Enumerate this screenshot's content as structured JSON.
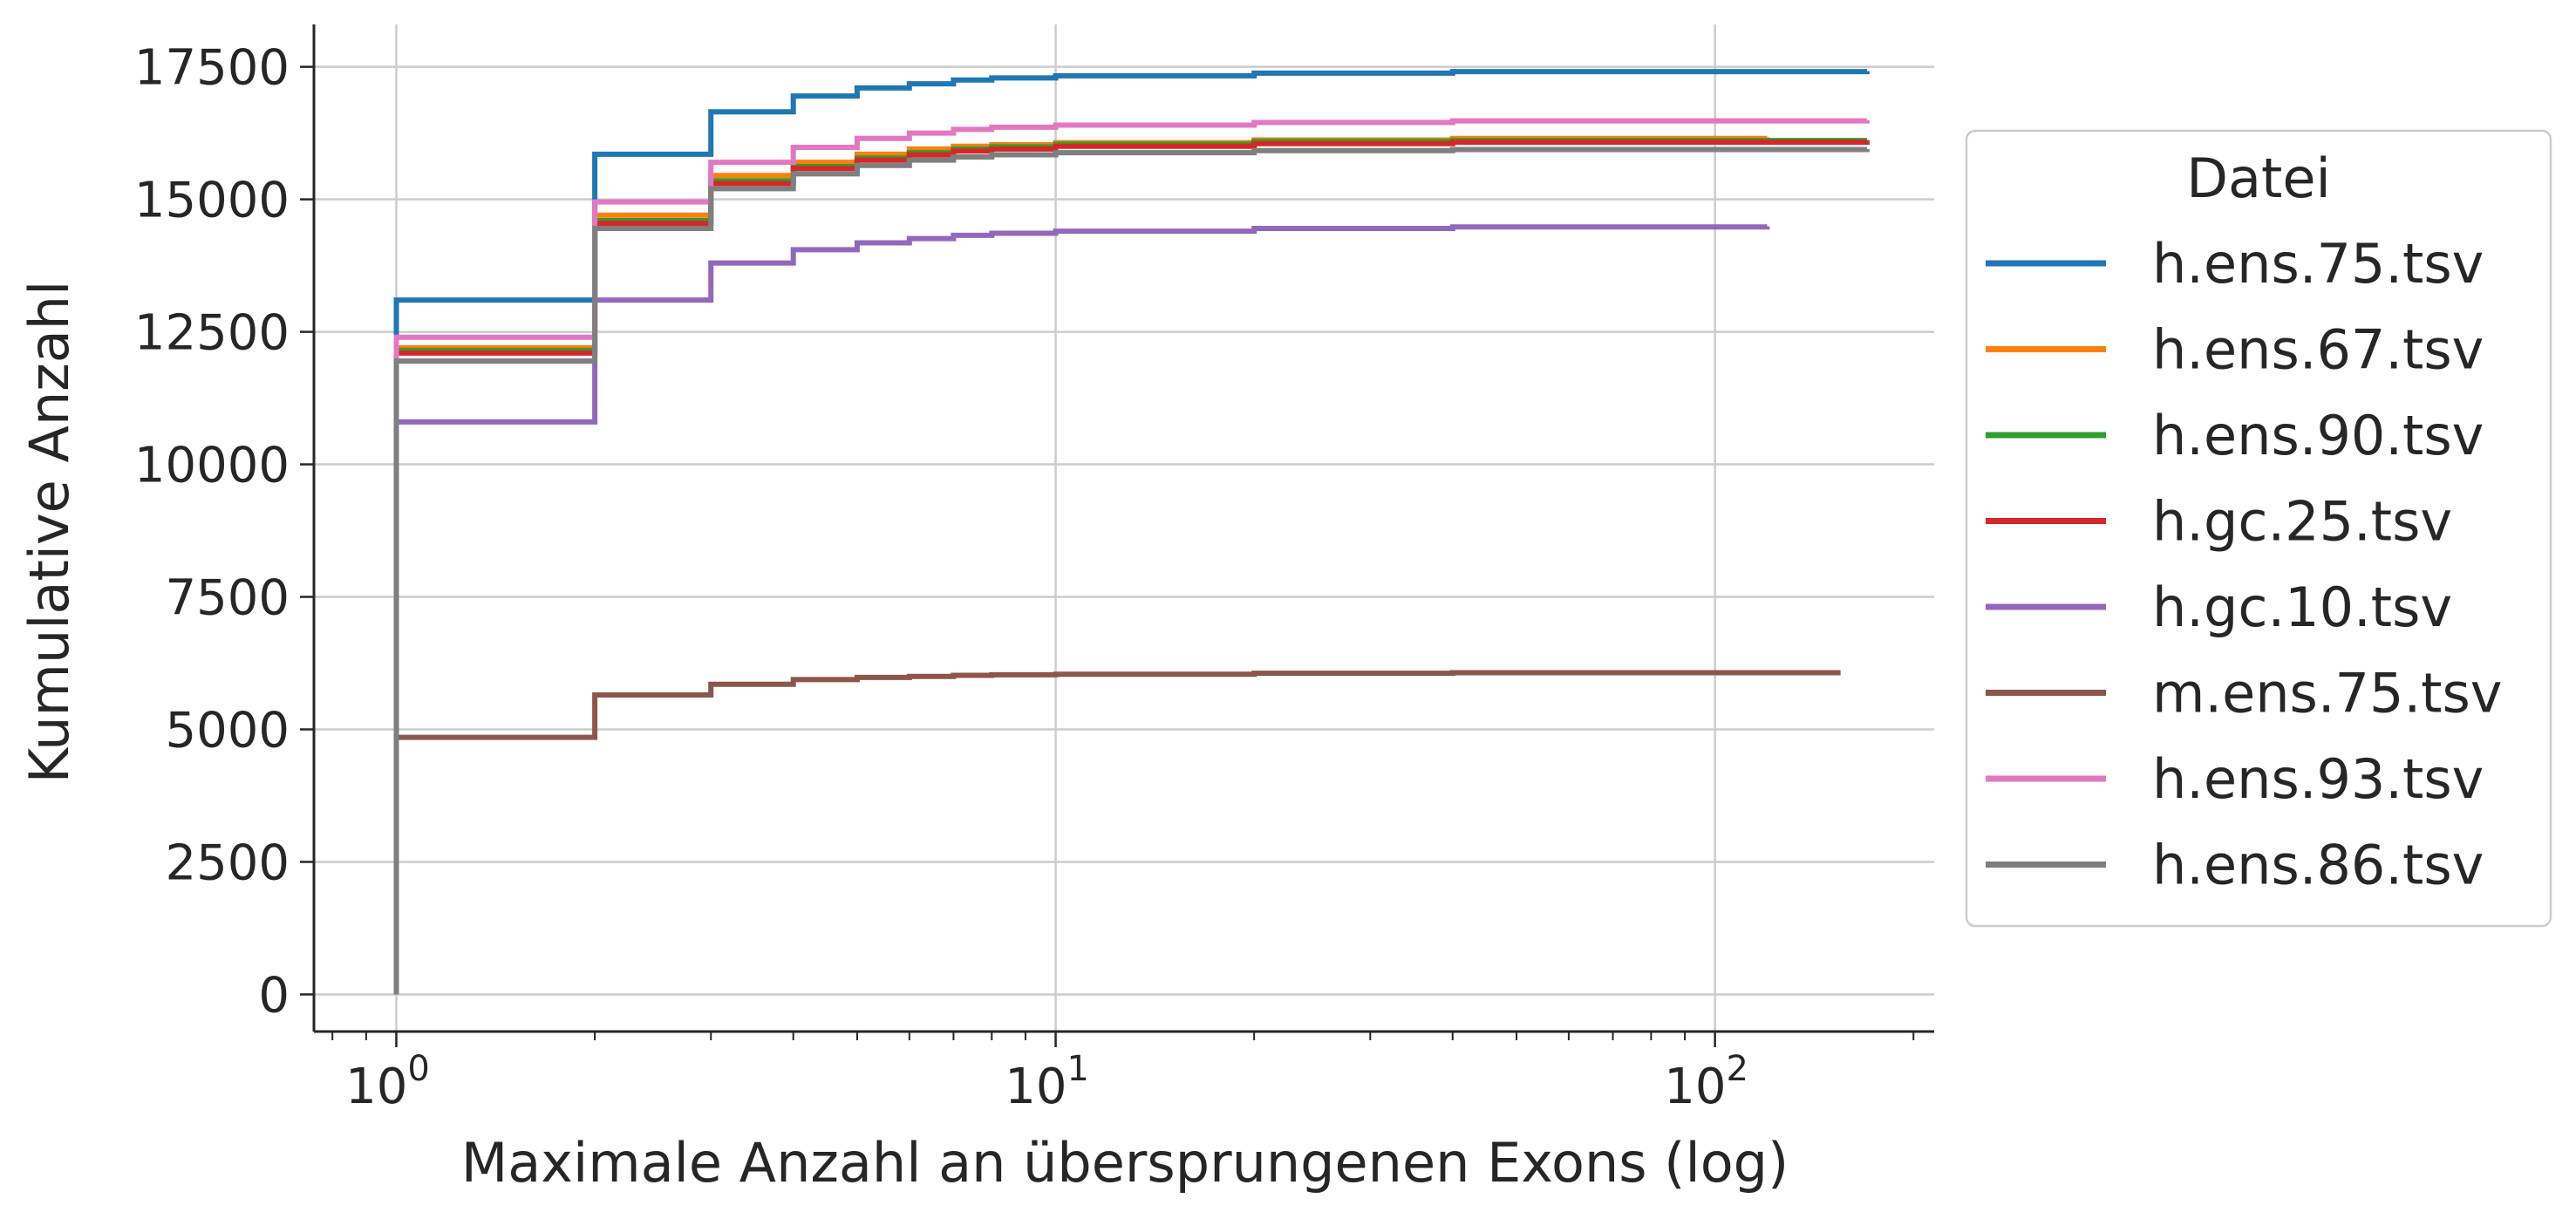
{
  "chart_data": {
    "type": "line",
    "drawstyle": "steps-post",
    "title": "",
    "xlabel": "Maximale Anzahl an übersprungenen Exons (log)",
    "ylabel": "Kumulative Anzahl",
    "xscale": "log",
    "xlim": [
      0.75,
      215
    ],
    "ylim": [
      -700,
      18300
    ],
    "xticks_major": [
      {
        "value": 1,
        "base": "10",
        "exp": "0"
      },
      {
        "value": 10,
        "base": "10",
        "exp": "1"
      },
      {
        "value": 100,
        "base": "10",
        "exp": "2"
      }
    ],
    "yticks": [
      {
        "value": 0,
        "label": "0"
      },
      {
        "value": 2500,
        "label": "2500"
      },
      {
        "value": 5000,
        "label": "5000"
      },
      {
        "value": 7500,
        "label": "7500"
      },
      {
        "value": 10000,
        "label": "10000"
      },
      {
        "value": 12500,
        "label": "12500"
      },
      {
        "value": 15000,
        "label": "15000"
      },
      {
        "value": 17500,
        "label": "17500"
      }
    ],
    "grid": true,
    "legend": {
      "title": "Datei",
      "placement": "outside-right"
    },
    "series": [
      {
        "name": "h.ens.75.tsv",
        "color": "#1f77b4",
        "x": [
          1,
          2,
          3,
          4,
          5,
          6,
          7,
          8,
          10,
          20,
          40,
          170
        ],
        "y": [
          13100,
          15850,
          16650,
          16950,
          17100,
          17180,
          17250,
          17290,
          17330,
          17380,
          17410,
          17420
        ]
      },
      {
        "name": "h.ens.67.tsv",
        "color": "#ff7f0e",
        "x": [
          1,
          2,
          3,
          4,
          5,
          6,
          7,
          8,
          10,
          20,
          40,
          120
        ],
        "y": [
          12200,
          14700,
          15450,
          15700,
          15850,
          15950,
          16000,
          16030,
          16070,
          16120,
          16150,
          16170
        ]
      },
      {
        "name": "h.ens.90.tsv",
        "color": "#2ca02c",
        "x": [
          1,
          2,
          3,
          4,
          5,
          6,
          7,
          8,
          10,
          20,
          40,
          170
        ],
        "y": [
          12150,
          14600,
          15350,
          15620,
          15780,
          15880,
          15950,
          15990,
          16040,
          16090,
          16110,
          16120
        ]
      },
      {
        "name": "h.gc.25.tsv",
        "color": "#d62728",
        "x": [
          1,
          2,
          3,
          4,
          5,
          6,
          7,
          8,
          10,
          20,
          40,
          170
        ],
        "y": [
          12100,
          14550,
          15300,
          15580,
          15740,
          15840,
          15910,
          15950,
          16000,
          16050,
          16080,
          16090
        ]
      },
      {
        "name": "h.gc.10.tsv",
        "color": "#9467bd",
        "x": [
          1,
          2,
          3,
          4,
          5,
          6,
          7,
          8,
          10,
          20,
          40,
          120
        ],
        "y": [
          10800,
          13100,
          13800,
          14050,
          14180,
          14260,
          14320,
          14360,
          14400,
          14450,
          14480,
          14490
        ]
      },
      {
        "name": "m.ens.75.tsv",
        "color": "#8c564b",
        "x": [
          1,
          2,
          3,
          4,
          5,
          6,
          7,
          8,
          10,
          20,
          40,
          155
        ],
        "y": [
          4850,
          5650,
          5850,
          5940,
          5980,
          6000,
          6020,
          6030,
          6040,
          6060,
          6070,
          6070
        ]
      },
      {
        "name": "h.ens.93.tsv",
        "color": "#e377c2",
        "x": [
          1,
          2,
          3,
          4,
          5,
          6,
          7,
          8,
          10,
          20,
          40,
          170
        ],
        "y": [
          12400,
          14950,
          15700,
          15980,
          16150,
          16250,
          16320,
          16360,
          16400,
          16450,
          16480,
          16490
        ]
      },
      {
        "name": "h.ens.86.tsv",
        "color": "#7f7f7f",
        "x": [
          1,
          2,
          3,
          4,
          5,
          6,
          7,
          8,
          10,
          20,
          40,
          170
        ],
        "y": [
          11950,
          14450,
          15200,
          15480,
          15640,
          15740,
          15800,
          15840,
          15880,
          15920,
          15940,
          15950
        ]
      }
    ]
  }
}
